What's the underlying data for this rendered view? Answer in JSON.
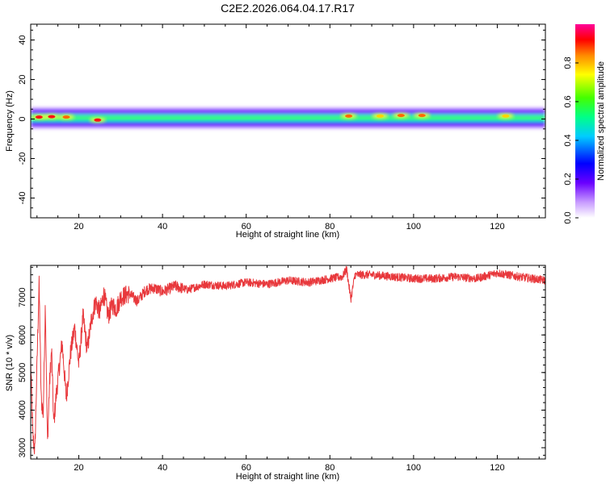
{
  "page": {
    "title": "C2E2.2026.064.04.17.R17"
  },
  "colors": {
    "snr_line": "#e8383c",
    "frame": "#000000",
    "background": "#ffffff"
  },
  "chart_data": [
    {
      "type": "heatmap",
      "name": "spectrum",
      "title": "C2E2.2026.064.04.17.R17",
      "xlabel": "Height of straight line (km)",
      "ylabel": "Frequency (Hz)",
      "xlim": [
        8.5,
        131.5
      ],
      "ylim": [
        -50,
        48
      ],
      "x_ticks": [
        20,
        40,
        60,
        80,
        100,
        120
      ],
      "y_ticks": [
        -40,
        -20,
        0,
        20,
        40
      ],
      "grid": false,
      "colorbar": {
        "label": "Normalized spectral amplitude",
        "range": [
          0,
          1
        ],
        "ticks": [
          "0.0",
          "0.2",
          "0.4",
          "0.6",
          "0.8"
        ],
        "colormap": "rainbow",
        "placement": "right"
      },
      "band": {
        "center_hz": 0.5,
        "outer_halfwidth_hz": 5,
        "core_halfwidth_hz": 2
      },
      "hotspots": [
        {
          "x": 10.5,
          "freq": 1,
          "amplitude": 0.95
        },
        {
          "x": 13.5,
          "freq": 1.2,
          "amplitude": 0.9
        },
        {
          "x": 17,
          "freq": 1,
          "amplitude": 0.8
        },
        {
          "x": 24.5,
          "freq": -0.5,
          "amplitude": 0.9
        },
        {
          "x": 84.5,
          "freq": 1.5,
          "amplitude": 0.85
        },
        {
          "x": 92,
          "freq": 1.5,
          "amplitude": 0.75
        },
        {
          "x": 97,
          "freq": 1.8,
          "amplitude": 0.85
        },
        {
          "x": 102,
          "freq": 1.8,
          "amplitude": 0.8
        },
        {
          "x": 122,
          "freq": 1.5,
          "amplitude": 0.7
        }
      ]
    },
    {
      "type": "line",
      "name": "snr",
      "xlabel": "Height of straight line (km)",
      "ylabel": "SNR (10 * v/v)",
      "xlim": [
        8.5,
        131.5
      ],
      "ylim": [
        2700,
        7850
      ],
      "x_ticks": [
        20,
        40,
        60,
        80,
        100,
        120
      ],
      "y_ticks": [
        3000,
        4000,
        5000,
        6000,
        7000
      ],
      "grid": false,
      "series": [
        {
          "color": "#e8383c",
          "x": [
            8.5,
            9,
            9.5,
            10,
            10.5,
            11,
            11.5,
            12,
            12.5,
            13,
            13.5,
            14,
            14.5,
            15,
            16,
            17,
            18,
            19,
            20,
            21,
            22,
            23,
            24,
            25,
            26,
            27,
            28,
            29,
            30,
            32,
            34,
            36,
            38,
            40,
            43,
            46,
            50,
            55,
            60,
            65,
            70,
            75,
            80,
            83,
            84,
            85,
            86,
            90,
            95,
            100,
            105,
            110,
            115,
            120,
            125,
            131.5
          ],
          "values": [
            5300,
            3300,
            2900,
            5200,
            7400,
            4300,
            3900,
            6900,
            3100,
            4700,
            5600,
            3600,
            4300,
            4800,
            5800,
            4300,
            5500,
            6200,
            5200,
            6500,
            5600,
            6400,
            6900,
            6600,
            7100,
            6500,
            6800,
            6700,
            7000,
            7100,
            6900,
            7200,
            7250,
            7150,
            7300,
            7200,
            7350,
            7300,
            7400,
            7350,
            7450,
            7400,
            7500,
            7550,
            7750,
            6950,
            7600,
            7600,
            7550,
            7500,
            7500,
            7550,
            7500,
            7650,
            7550,
            7450
          ]
        }
      ]
    }
  ]
}
